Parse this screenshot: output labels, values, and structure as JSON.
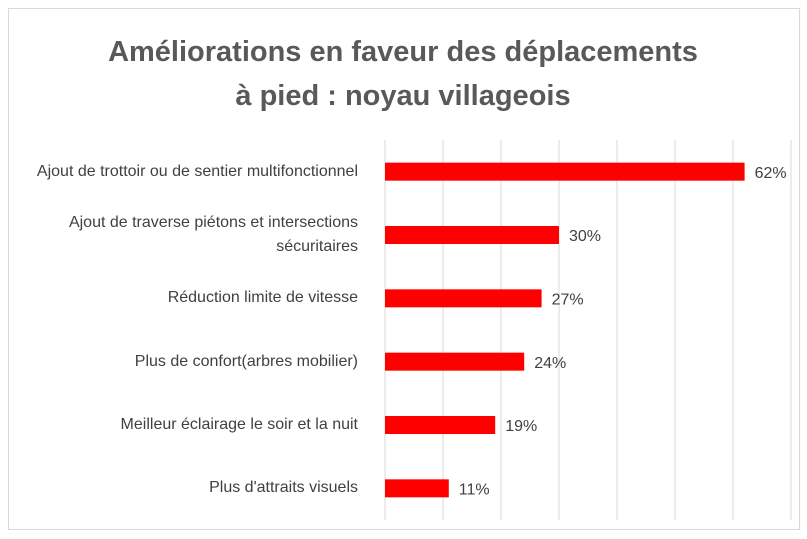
{
  "chart_data": {
    "type": "bar",
    "orientation": "horizontal",
    "title": "Améliorations en faveur des déplacements à pied : noyau villageois",
    "categories": [
      "Ajout de trottoir ou de sentier multifonctionnel",
      "Ajout de traverse piétons et intersections sécuritaires",
      "Réduction limite de vitesse",
      "Plus de confort(arbres mobilier)",
      "Meilleur éclairage le soir et la nuit",
      "Plus d'attraits visuels"
    ],
    "values": [
      62,
      30,
      27,
      24,
      19,
      11
    ],
    "value_labels": [
      "62%",
      "30%",
      "27%",
      "24%",
      "19%",
      "11%"
    ],
    "color": "#ff0000",
    "xlim": [
      0,
      70
    ],
    "xticks": [
      0,
      10,
      20,
      30,
      40,
      50,
      60,
      70
    ],
    "grid": true
  }
}
